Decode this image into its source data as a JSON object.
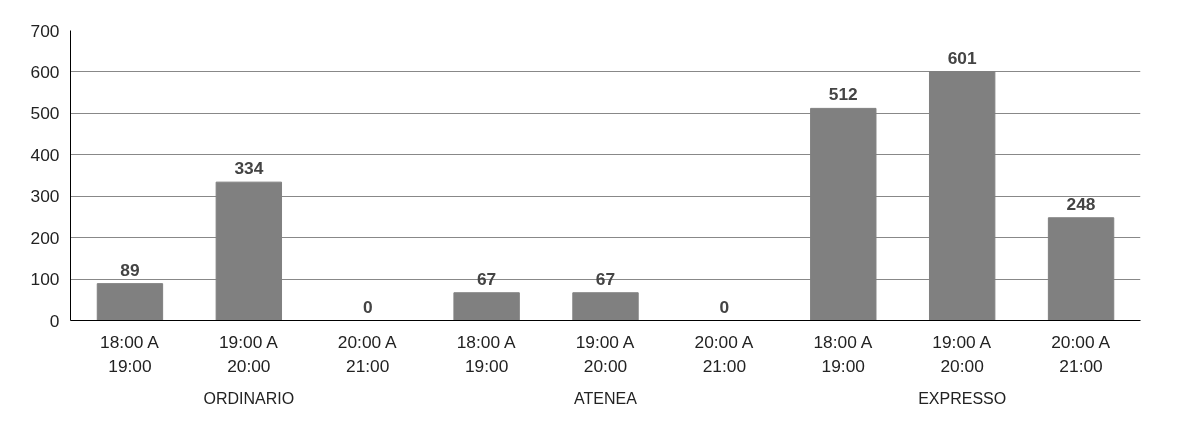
{
  "chart_data": {
    "type": "bar",
    "categories": [
      "18:00 A\n19:00",
      "19:00 A\n20:00",
      "20:00 A\n21:00",
      "18:00 A\n19:00",
      "19:00 A\n20:00",
      "20:00 A\n21:00",
      "18:00 A\n19:00",
      "19:00 A\n20:00",
      "20:00 A\n21:00"
    ],
    "values": [
      89,
      334,
      0,
      67,
      67,
      0,
      512,
      601,
      248
    ],
    "color": "#808080",
    "ylim": [
      0,
      700
    ],
    "yticks": [
      0,
      100,
      200,
      300,
      400,
      500,
      600,
      700
    ],
    "grid": "y",
    "data_labels": true,
    "annotations": [
      "ORDINARIO",
      "ATENEA",
      "EXPRESSO"
    ]
  }
}
